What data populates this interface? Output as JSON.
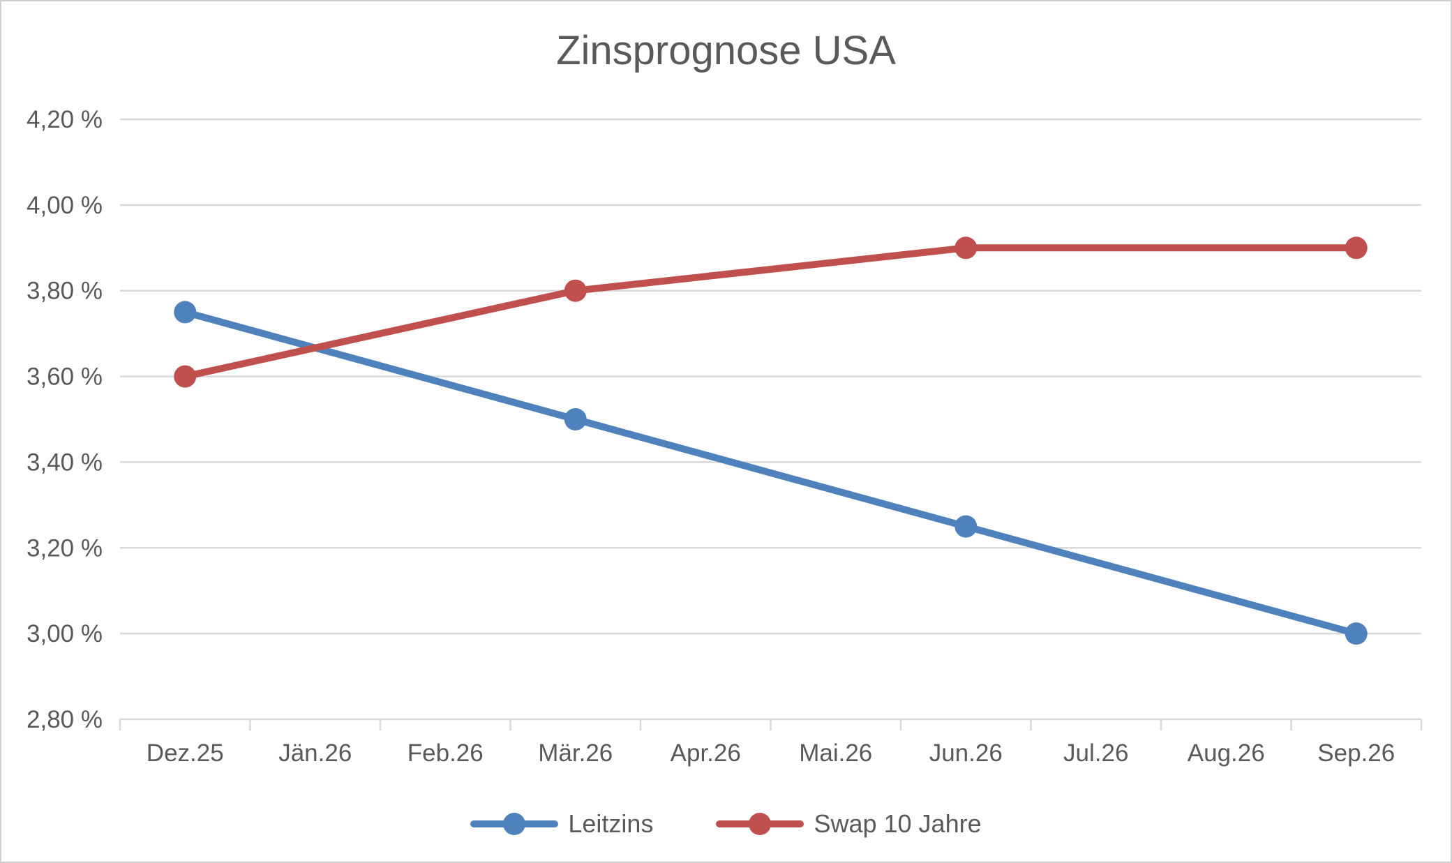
{
  "chart_data": {
    "type": "line",
    "title": "Zinsprognose USA",
    "categories": [
      "Dez.25",
      "Jän.26",
      "Feb.26",
      "Mär.26",
      "Apr.26",
      "Mai.26",
      "Jun.26",
      "Jul.26",
      "Aug.26",
      "Sep.26"
    ],
    "series": [
      {
        "name": "Leitzins",
        "color": "#4F81BD",
        "points": [
          {
            "category": "Dez.25",
            "value": 3.75
          },
          {
            "category": "Mär.26",
            "value": 3.5
          },
          {
            "category": "Jun.26",
            "value": 3.25
          },
          {
            "category": "Sep.26",
            "value": 3.0
          }
        ]
      },
      {
        "name": "Swap 10 Jahre",
        "color": "#C0504D",
        "points": [
          {
            "category": "Dez.25",
            "value": 3.6
          },
          {
            "category": "Mär.26",
            "value": 3.8
          },
          {
            "category": "Jun.26",
            "value": 3.9
          },
          {
            "category": "Sep.26",
            "value": 3.9
          }
        ]
      }
    ],
    "y_axis": {
      "min": 2.8,
      "max": 4.2,
      "tick_step": 0.2,
      "ticks": [
        {
          "label": "4,20 %",
          "value": 4.2
        },
        {
          "label": "4,00 %",
          "value": 4.0
        },
        {
          "label": "3,80 %",
          "value": 3.8
        },
        {
          "label": "3,60 %",
          "value": 3.6
        },
        {
          "label": "3,40 %",
          "value": 3.4
        },
        {
          "label": "3,20 %",
          "value": 3.2
        },
        {
          "label": "3,00 %",
          "value": 3.0
        },
        {
          "label": "2,80 %",
          "value": 2.8
        }
      ]
    },
    "legend_position": "bottom",
    "grid": true
  },
  "colors": {
    "text": "#595959",
    "grid": "#D9D9D9",
    "axis": "#D9D9D9",
    "background": "#FFFFFF"
  }
}
